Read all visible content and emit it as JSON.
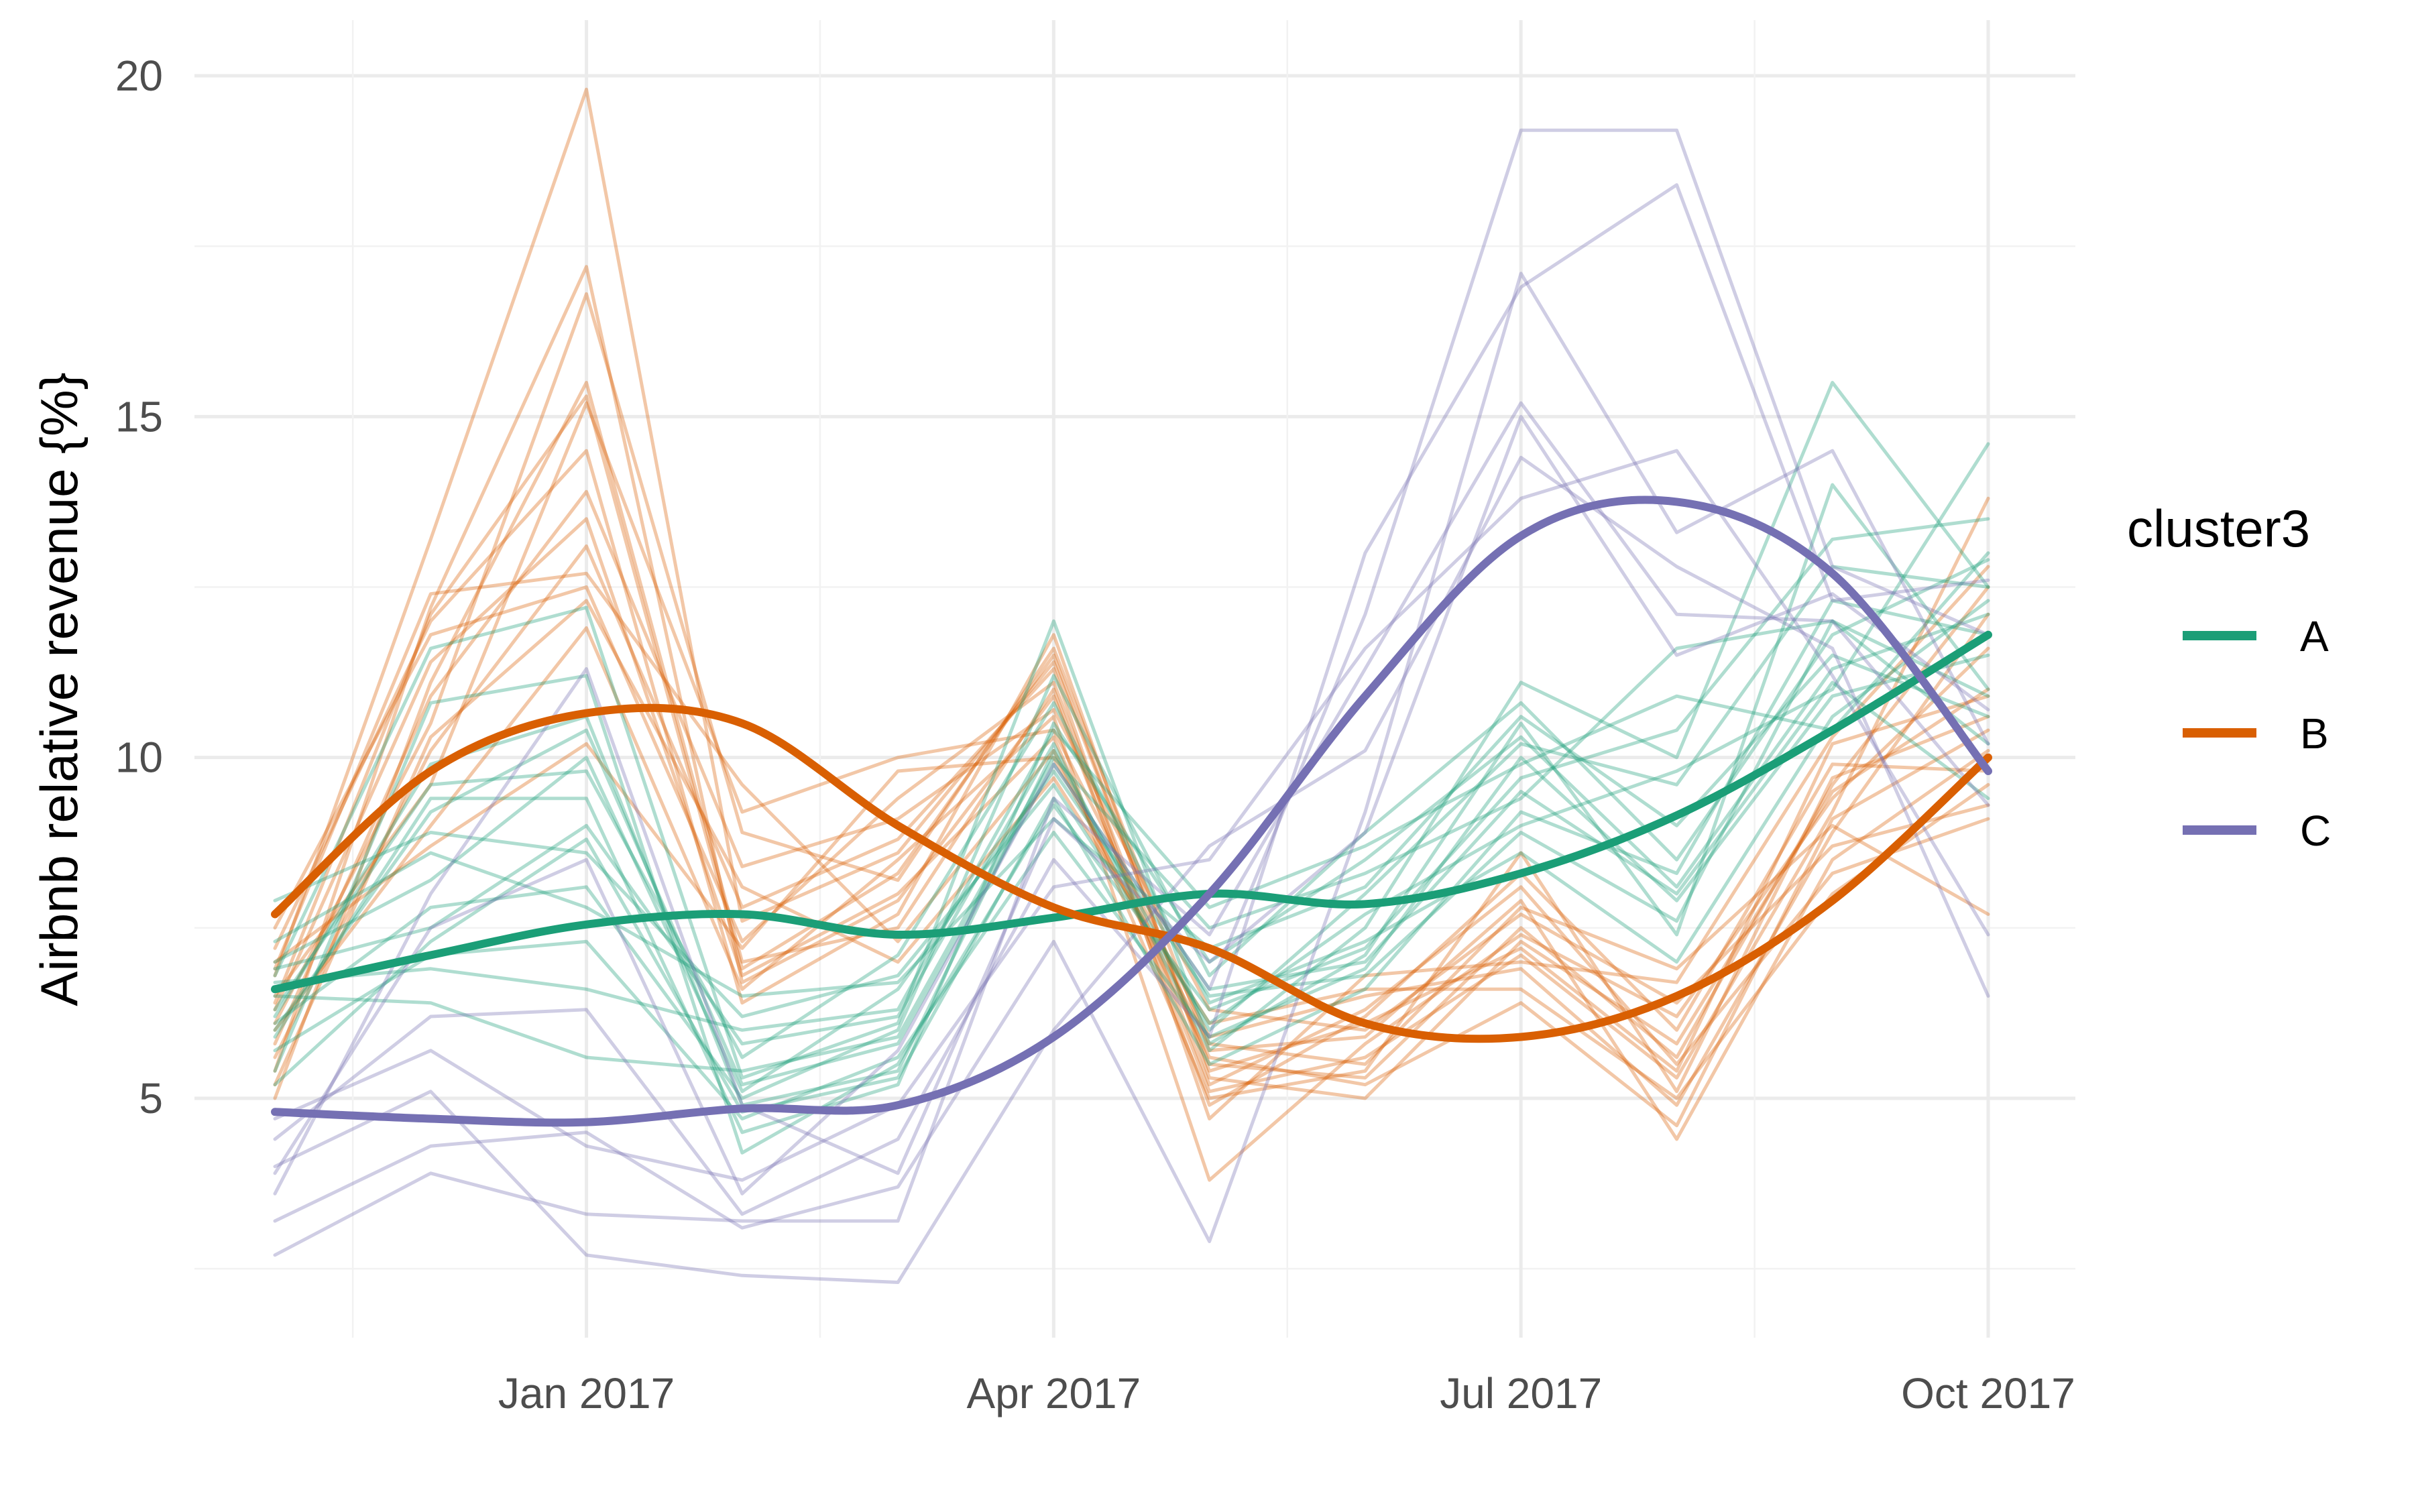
{
  "chart_data": {
    "type": "line",
    "title": "",
    "xlabel": "",
    "ylabel": "Airbnb relative revenue {%}",
    "x": [
      "2016-11",
      "2016-12",
      "2017-01",
      "2017-02",
      "2017-03",
      "2017-04",
      "2017-05",
      "2017-06",
      "2017-07",
      "2017-08",
      "2017-09",
      "2017-10"
    ],
    "x_tick_labels": [
      {
        "x": "2017-01",
        "label": "Jan 2017"
      },
      {
        "x": "2017-04",
        "label": "Apr 2017"
      },
      {
        "x": "2017-07",
        "label": "Jul 2017"
      },
      {
        "x": "2017-10",
        "label": "Oct 2017"
      }
    ],
    "y_ticks": [
      5,
      10,
      15,
      20
    ],
    "ylim": [
      1.6,
      20.9
    ],
    "grid": true,
    "legend": {
      "title": "cluster3",
      "position": "right"
    },
    "series": [
      {
        "name": "A",
        "color": "#1b9e77",
        "smooth": [
          6.6,
          7.1,
          7.55,
          7.7,
          7.4,
          7.65,
          8.0,
          7.85,
          8.3,
          9.15,
          10.4,
          11.8
        ],
        "lines": [
          [
            6.8,
            11.6,
            12.2,
            5.3,
            6.1,
            12.0,
            5.8,
            7.1,
            10.5,
            7.4,
            14.0,
            11.0
          ],
          [
            6.2,
            9.9,
            10.6,
            4.9,
            5.4,
            10.1,
            6.0,
            8.0,
            10.2,
            9.6,
            12.8,
            12.5
          ],
          [
            7.0,
            8.2,
            10.0,
            5.1,
            6.6,
            9.8,
            6.5,
            6.8,
            8.9,
            7.6,
            12.0,
            10.2
          ],
          [
            5.9,
            9.4,
            9.4,
            4.5,
            5.2,
            10.5,
            7.0,
            8.5,
            10.3,
            8.1,
            11.3,
            12.1
          ],
          [
            6.9,
            7.5,
            9.0,
            5.8,
            6.2,
            10.2,
            5.7,
            7.5,
            11.1,
            10.0,
            15.5,
            12.5
          ],
          [
            5.4,
            10.8,
            11.2,
            4.2,
            5.5,
            9.3,
            6.3,
            7.2,
            9.7,
            10.4,
            13.2,
            13.5
          ],
          [
            6.1,
            7.8,
            8.1,
            5.0,
            6.0,
            11.2,
            6.8,
            8.9,
            10.8,
            8.5,
            11.8,
            12.9
          ],
          [
            7.9,
            8.9,
            8.6,
            6.2,
            6.8,
            9.6,
            6.1,
            7.7,
            9.0,
            9.8,
            11.0,
            14.6
          ],
          [
            5.7,
            7.1,
            7.3,
            4.7,
            5.6,
            8.9,
            5.9,
            6.9,
            10.0,
            7.9,
            10.9,
            11.5
          ],
          [
            6.5,
            6.4,
            5.6,
            5.4,
            5.9,
            10.0,
            7.5,
            8.3,
            9.4,
            11.6,
            12.0,
            10.9
          ],
          [
            6.3,
            9.6,
            9.8,
            5.6,
            7.1,
            10.8,
            6.4,
            7.3,
            8.6,
            7.0,
            10.6,
            12.3
          ],
          [
            7.3,
            8.6,
            7.8,
            6.5,
            6.7,
            9.1,
            7.2,
            8.1,
            10.6,
            9.0,
            11.5,
            10.6
          ],
          [
            5.2,
            7.3,
            8.8,
            4.8,
            5.3,
            9.4,
            5.5,
            6.6,
            9.2,
            8.3,
            12.3,
            11.8
          ],
          [
            6.7,
            6.9,
            6.6,
            6.0,
            6.3,
            10.4,
            7.8,
            8.7,
            9.9,
            10.9,
            10.4,
            13.0
          ],
          [
            6.0,
            9.2,
            10.4,
            5.2,
            5.8,
            9.9,
            6.6,
            7.0,
            9.5,
            8.0,
            11.1,
            9.4
          ]
        ]
      },
      {
        "name": "B",
        "color": "#d95f02",
        "smooth": [
          7.7,
          9.8,
          10.65,
          10.5,
          9.0,
          7.8,
          7.2,
          6.1,
          5.9,
          6.5,
          7.9,
          10.0
        ],
        "lines": [
          [
            6.8,
            13.2,
            19.8,
            7.6,
            8.6,
            11.4,
            5.5,
            5.3,
            7.5,
            5.6,
            9.6,
            12.5
          ],
          [
            5.4,
            12.2,
            17.2,
            6.7,
            7.9,
            10.9,
            5.1,
            5.6,
            7.1,
            5.3,
            9.2,
            13.8
          ],
          [
            6.1,
            10.5,
            16.8,
            8.9,
            8.2,
            11.6,
            5.7,
            5.9,
            7.9,
            4.4,
            8.5,
            10.1
          ],
          [
            5.0,
            11.1,
            15.5,
            7.0,
            7.5,
            11.0,
            4.9,
            6.2,
            8.3,
            6.0,
            9.9,
            9.8
          ],
          [
            6.5,
            9.6,
            15.2,
            9.2,
            10.0,
            10.4,
            5.9,
            6.5,
            6.9,
            4.9,
            8.9,
            12.1
          ],
          [
            7.2,
            12.0,
            14.5,
            6.4,
            7.7,
            11.8,
            5.3,
            5.0,
            7.3,
            5.8,
            9.5,
            11.0
          ],
          [
            5.8,
            10.9,
            13.9,
            8.4,
            9.1,
            10.7,
            6.3,
            6.0,
            7.7,
            6.4,
            8.7,
            9.3
          ],
          [
            6.3,
            11.4,
            13.5,
            6.8,
            8.0,
            10.3,
            5.0,
            5.4,
            8.6,
            5.1,
            9.7,
            10.6
          ],
          [
            5.6,
            10.1,
            13.1,
            7.8,
            8.8,
            11.3,
            4.7,
            6.8,
            7.0,
            6.7,
            10.3,
            12.8
          ],
          [
            6.9,
            12.4,
            12.7,
            9.6,
            7.3,
            10.1,
            5.6,
            5.2,
            6.4,
            4.6,
            9.1,
            10.4
          ],
          [
            7.5,
            11.8,
            12.5,
            7.3,
            9.4,
            11.1,
            5.2,
            6.3,
            8.1,
            5.5,
            8.3,
            9.1
          ],
          [
            6.0,
            9.0,
            11.9,
            6.6,
            8.5,
            10.6,
            3.8,
            5.8,
            7.4,
            6.2,
            9.4,
            11.6
          ],
          [
            5.2,
            10.3,
            12.3,
            8.1,
            7.0,
            9.7,
            6.1,
            6.6,
            6.6,
            5.0,
            8.0,
            9.6
          ],
          [
            7.0,
            8.7,
            10.2,
            7.2,
            9.8,
            10.0,
            5.8,
            5.5,
            7.8,
            6.9,
            9.0,
            7.7
          ],
          [
            6.4,
            12.1,
            15.3,
            6.9,
            8.3,
            11.5,
            5.4,
            6.1,
            7.2,
            5.4,
            10.2,
            10.9
          ]
        ]
      },
      {
        "name": "C",
        "color": "#7570b3",
        "smooth": [
          4.8,
          4.7,
          4.65,
          4.85,
          4.9,
          5.9,
          8.0,
          10.9,
          13.25,
          13.75,
          12.7,
          9.8
        ],
        "lines": [
          [
            3.9,
            7.5,
            8.5,
            3.6,
            5.7,
            9.9,
            6.6,
            12.1,
            19.2,
            19.2,
            12.8,
            11.8
          ],
          [
            4.4,
            6.2,
            6.3,
            3.3,
            4.4,
            8.5,
            5.9,
            13.0,
            16.9,
            18.4,
            12.3,
            12.6
          ],
          [
            3.2,
            4.3,
            4.5,
            3.1,
            3.7,
            7.3,
            2.9,
            9.2,
            17.1,
            13.3,
            14.5,
            10.2
          ],
          [
            2.7,
            3.9,
            3.3,
            3.2,
            3.2,
            9.4,
            7.4,
            11.3,
            15.2,
            12.1,
            12.0,
            9.3
          ],
          [
            4.0,
            5.1,
            2.7,
            2.4,
            2.3,
            6.0,
            8.7,
            10.1,
            14.4,
            12.8,
            11.6,
            6.5
          ],
          [
            4.7,
            5.7,
            4.3,
            3.8,
            4.9,
            8.1,
            8.5,
            11.6,
            13.8,
            14.5,
            11.2,
            7.4
          ],
          [
            3.6,
            8.0,
            11.3,
            4.9,
            3.9,
            9.1,
            7.0,
            8.9,
            15.0,
            11.5,
            12.4,
            10.7
          ]
        ]
      }
    ]
  }
}
